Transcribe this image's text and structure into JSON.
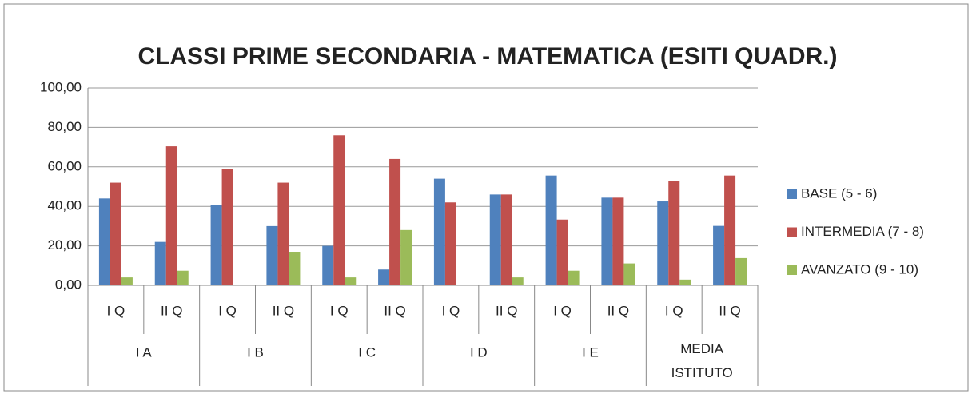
{
  "chart_data": {
    "type": "bar",
    "title": "CLASSI PRIME SECONDARIA - MATEMATICA  (ESITI QUADR.)",
    "categories": [
      "I Q",
      "II Q",
      "I Q",
      "II Q",
      "I Q",
      "II Q",
      "I Q",
      "II Q",
      "I Q",
      "II Q",
      "I Q",
      "II Q"
    ],
    "groups": [
      "I A",
      "I B",
      "I C",
      "I D",
      "I E",
      "MEDIA ISTITUTO"
    ],
    "series": [
      {
        "name": "BASE (5 - 6)",
        "color": "#4f81bd",
        "values": [
          44,
          22,
          40.7,
          30,
          20,
          8,
          54,
          46,
          55.6,
          44.4,
          42.5,
          30.1
        ]
      },
      {
        "name": "INTERMEDIA (7 - 8)",
        "color": "#c0504d",
        "values": [
          52,
          70.4,
          59,
          52,
          76,
          64,
          42,
          46,
          33.3,
          44.4,
          52.7,
          55.6
        ]
      },
      {
        "name": "AVANZATO (9 - 10)",
        "color": "#9bbb59",
        "values": [
          4,
          7.4,
          0,
          17,
          4,
          28,
          0,
          4,
          7.4,
          11.1,
          2.9,
          13.8
        ]
      }
    ],
    "ylim": [
      0,
      100
    ],
    "yticks": [
      {
        "value": 0,
        "label": "0,00"
      },
      {
        "value": 20,
        "label": "20,00"
      },
      {
        "value": 40,
        "label": "40,00"
      },
      {
        "value": 60,
        "label": "60,00"
      },
      {
        "value": 80,
        "label": "80,00"
      },
      {
        "value": 100,
        "label": "100,00"
      }
    ],
    "grid": true,
    "legend": "right"
  }
}
